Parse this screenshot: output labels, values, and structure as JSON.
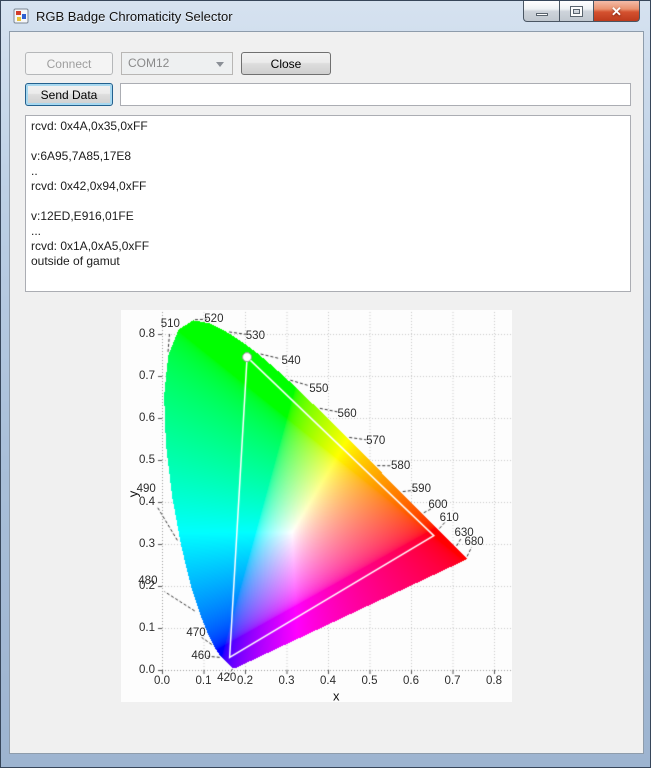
{
  "window": {
    "title": "RGB Badge Chromaticity Selector"
  },
  "icons": {
    "app": "winforms-app-icon",
    "minimize": "minimize-icon",
    "maximize": "maximize-icon",
    "close": "close-icon",
    "combo_arrow": "chevron-down-icon"
  },
  "toolbar": {
    "connect_label": "Connect",
    "com_port": "COM12",
    "close_label": "Close",
    "send_data_label": "Send Data",
    "input_value": ""
  },
  "log": {
    "text": "rcvd: 0x4A,0x35,0xFF\n\nv:6A95,7A85,17E8\n..\nrcvd: 0x42,0x94,0xFF\n\nv:12ED,E916,01FE\n...\nrcvd: 0x1A,0xA5,0xFF\noutside of gamut\n\n............."
  },
  "chart_data": {
    "type": "cie-1931-chromaticity",
    "title": "",
    "xlabel": "x",
    "ylabel": "y",
    "xlim": [
      0,
      0.843
    ],
    "ylim": [
      0,
      0.857
    ],
    "grid": true,
    "background": "#fdfdfd",
    "colors": {
      "grid": "#c8c8c8",
      "axis": "#9a9a9a",
      "tick": "#555555",
      "leader": "#333333",
      "triangle": "#ffffff",
      "marker_fill": "#ffffff",
      "marker_edge": "#999999"
    },
    "x_ticks": {
      "values": [
        0,
        0.1,
        0.2,
        0.3,
        0.4,
        0.5,
        0.6,
        0.7,
        0.8
      ],
      "labels": [
        "0.0",
        "0.1",
        "0.2",
        "0.3",
        "0.4",
        "0.5",
        "0.6",
        "0.7",
        "0.8"
      ]
    },
    "y_ticks": {
      "values": [
        0,
        0.1,
        0.2,
        0.3,
        0.4,
        0.5,
        0.6,
        0.7,
        0.8
      ],
      "labels": [
        "0.0",
        "0.1",
        "0.2",
        "0.3",
        "0.4",
        "0.5",
        "0.6",
        "0.7",
        "0.8"
      ]
    },
    "wavelengths": [
      {
        "label": "510",
        "locus": [
          0.0139,
          0.7502
        ],
        "anchor": [
          0.02,
          0.823
        ]
      },
      {
        "label": "520",
        "locus": [
          0.0743,
          0.8338
        ],
        "anchor": [
          0.125,
          0.836
        ]
      },
      {
        "label": "530",
        "locus": [
          0.1547,
          0.8059
        ],
        "anchor": [
          0.225,
          0.796
        ]
      },
      {
        "label": "540",
        "locus": [
          0.2296,
          0.7543
        ],
        "anchor": [
          0.311,
          0.735
        ]
      },
      {
        "label": "550",
        "locus": [
          0.3016,
          0.6923
        ],
        "anchor": [
          0.378,
          0.67
        ]
      },
      {
        "label": "560",
        "locus": [
          0.3731,
          0.6245
        ],
        "anchor": [
          0.446,
          0.61
        ]
      },
      {
        "label": "570",
        "locus": [
          0.4441,
          0.5547
        ],
        "anchor": [
          0.515,
          0.545
        ]
      },
      {
        "label": "580",
        "locus": [
          0.5125,
          0.4866
        ],
        "anchor": [
          0.575,
          0.486
        ]
      },
      {
        "label": "590",
        "locus": [
          0.5752,
          0.4242
        ],
        "anchor": [
          0.625,
          0.43
        ]
      },
      {
        "label": "600",
        "locus": [
          0.627,
          0.3725
        ],
        "anchor": [
          0.665,
          0.392
        ]
      },
      {
        "label": "610",
        "locus": [
          0.6658,
          0.334
        ],
        "anchor": [
          0.692,
          0.363
        ]
      },
      {
        "label": "630",
        "locus": [
          0.7079,
          0.292
        ],
        "anchor": [
          0.728,
          0.326
        ]
      },
      {
        "label": "680",
        "locus": [
          0.7334,
          0.2666
        ],
        "anchor": [
          0.752,
          0.305
        ]
      },
      {
        "label": "490",
        "locus": [
          0.0454,
          0.295
        ],
        "anchor": [
          -0.038,
          0.432
        ]
      },
      {
        "label": "480",
        "locus": [
          0.0913,
          0.1327
        ],
        "anchor": [
          -0.034,
          0.212
        ]
      },
      {
        "label": "470",
        "locus": [
          0.1241,
          0.0578
        ],
        "anchor": [
          0.082,
          0.087
        ]
      },
      {
        "label": "460",
        "locus": [
          0.144,
          0.0297
        ],
        "anchor": [
          0.094,
          0.034
        ]
      },
      {
        "label": "420",
        "locus": [
          0.1714,
          0.0051
        ],
        "anchor": [
          0.156,
          -0.02
        ]
      }
    ],
    "spectral_locus": [
      [
        0.1741,
        0.005
      ],
      [
        0.174,
        0.005
      ],
      [
        0.1738,
        0.0049
      ],
      [
        0.1736,
        0.0049
      ],
      [
        0.1733,
        0.0048
      ],
      [
        0.173,
        0.0048
      ],
      [
        0.1726,
        0.0048
      ],
      [
        0.1721,
        0.0048
      ],
      [
        0.1714,
        0.0051
      ],
      [
        0.1703,
        0.0058
      ],
      [
        0.1689,
        0.0069
      ],
      [
        0.1669,
        0.0086
      ],
      [
        0.1644,
        0.0109
      ],
      [
        0.1611,
        0.0138
      ],
      [
        0.1566,
        0.0177
      ],
      [
        0.151,
        0.0227
      ],
      [
        0.144,
        0.0297
      ],
      [
        0.1355,
        0.0399
      ],
      [
        0.1241,
        0.0578
      ],
      [
        0.1096,
        0.0868
      ],
      [
        0.0913,
        0.1327
      ],
      [
        0.0687,
        0.2007
      ],
      [
        0.0454,
        0.295
      ],
      [
        0.0235,
        0.4127
      ],
      [
        0.0082,
        0.5384
      ],
      [
        0.0039,
        0.6548
      ],
      [
        0.0139,
        0.7502
      ],
      [
        0.0389,
        0.812
      ],
      [
        0.0743,
        0.8338
      ],
      [
        0.1142,
        0.8262
      ],
      [
        0.1547,
        0.8059
      ],
      [
        0.1929,
        0.7816
      ],
      [
        0.2296,
        0.7543
      ],
      [
        0.2658,
        0.7243
      ],
      [
        0.3016,
        0.6923
      ],
      [
        0.3373,
        0.6589
      ],
      [
        0.3731,
        0.6245
      ],
      [
        0.4087,
        0.5896
      ],
      [
        0.4441,
        0.5547
      ],
      [
        0.4788,
        0.5202
      ],
      [
        0.5125,
        0.4866
      ],
      [
        0.5448,
        0.4544
      ],
      [
        0.5752,
        0.4242
      ],
      [
        0.6029,
        0.3965
      ],
      [
        0.627,
        0.3725
      ],
      [
        0.6482,
        0.3514
      ],
      [
        0.6658,
        0.334
      ],
      [
        0.6801,
        0.3197
      ],
      [
        0.6915,
        0.3083
      ],
      [
        0.7006,
        0.2993
      ],
      [
        0.7079,
        0.292
      ],
      [
        0.714,
        0.2859
      ],
      [
        0.719,
        0.2809
      ],
      [
        0.723,
        0.277
      ],
      [
        0.726,
        0.274
      ],
      [
        0.7283,
        0.2717
      ],
      [
        0.73,
        0.27
      ],
      [
        0.7311,
        0.2689
      ],
      [
        0.732,
        0.268
      ],
      [
        0.7327,
        0.2673
      ],
      [
        0.7334,
        0.2666
      ],
      [
        0.734,
        0.266
      ],
      [
        0.7344,
        0.2656
      ],
      [
        0.7346,
        0.2654
      ],
      [
        0.7347,
        0.2653
      ]
    ],
    "gamut_triangle": {
      "vertices": [
        [
          0.205,
          0.745
        ],
        [
          0.655,
          0.32
        ],
        [
          0.163,
          0.03
        ]
      ]
    },
    "marker": {
      "x": 0.205,
      "y": 0.745
    }
  }
}
